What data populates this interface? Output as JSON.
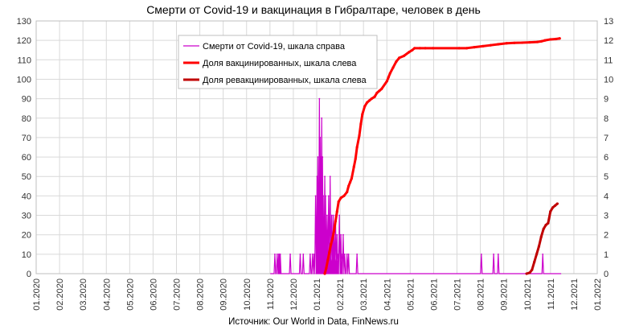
{
  "chart_data": {
    "type": "line",
    "title": "Смерти от Covid-19 и вакцинация в Гибралтаре, человек в день",
    "source": "Источник: Our World in Data, FinNews.ru",
    "x_ticks": [
      "01.2020",
      "02.2020",
      "03.2020",
      "04.2020",
      "05.2020",
      "06.2020",
      "07.2020",
      "08.2020",
      "09.2020",
      "10.2020",
      "11.2020",
      "12.2020",
      "01.2021",
      "02.2021",
      "03.2021",
      "04.2021",
      "05.2021",
      "06.2021",
      "07.2021",
      "08.2021",
      "09.2021",
      "10.2021",
      "11.2021",
      "12.2021",
      "01.2022"
    ],
    "y_left": {
      "min": 0,
      "max": 130,
      "step": 10
    },
    "y_right": {
      "min": 0,
      "max": 13,
      "step": 1
    },
    "grid": true,
    "legend": {
      "position": "top-center",
      "items": [
        {
          "label": "Смерти от Covid-19, шкала справа",
          "color": "#cc00cc",
          "width": 1.2
        },
        {
          "label": "Доля вакцинированных, шкала слева",
          "color": "#ff0000",
          "width": 3
        },
        {
          "label": "Доля ревакцинированных, шкала слева",
          "color": "#c00000",
          "width": 3
        }
      ]
    },
    "series": [
      {
        "name": "Смерти от Covid-19, шкала справа",
        "axis": "right",
        "color": "#cc00cc",
        "spikes": [
          [
            "2020-11-07",
            1
          ],
          [
            "2020-11-10",
            1
          ],
          [
            "2020-11-12",
            1
          ],
          [
            "2020-11-13",
            1
          ],
          [
            "2020-11-14",
            1
          ],
          [
            "2020-11-27",
            1
          ],
          [
            "2020-12-10",
            1
          ],
          [
            "2020-12-14",
            1
          ],
          [
            "2020-12-23",
            1
          ],
          [
            "2020-12-26",
            1
          ],
          [
            "2020-12-28",
            1
          ],
          [
            "2020-12-30",
            4
          ],
          [
            "2021-01-01",
            5
          ],
          [
            "2021-01-02",
            6
          ],
          [
            "2021-01-03",
            4
          ],
          [
            "2021-01-04",
            9
          ],
          [
            "2021-01-05",
            7
          ],
          [
            "2021-01-06",
            6
          ],
          [
            "2021-01-07",
            8
          ],
          [
            "2021-01-08",
            6
          ],
          [
            "2021-01-09",
            4
          ],
          [
            "2021-01-10",
            1
          ],
          [
            "2021-01-11",
            5
          ],
          [
            "2021-01-12",
            4
          ],
          [
            "2021-01-13",
            2
          ],
          [
            "2021-01-14",
            3
          ],
          [
            "2021-01-15",
            1
          ],
          [
            "2021-01-16",
            4
          ],
          [
            "2021-01-17",
            2
          ],
          [
            "2021-01-18",
            5
          ],
          [
            "2021-01-19",
            1
          ],
          [
            "2021-01-20",
            3
          ],
          [
            "2021-01-21",
            1
          ],
          [
            "2021-01-22",
            3
          ],
          [
            "2021-01-23",
            2
          ],
          [
            "2021-01-24",
            1
          ],
          [
            "2021-01-25",
            3
          ],
          [
            "2021-01-26",
            1
          ],
          [
            "2021-01-27",
            2
          ],
          [
            "2021-01-28",
            1
          ],
          [
            "2021-01-30",
            3
          ],
          [
            "2021-02-01",
            2
          ],
          [
            "2021-02-02",
            1
          ],
          [
            "2021-02-04",
            2
          ],
          [
            "2021-02-06",
            1
          ],
          [
            "2021-02-09",
            1
          ],
          [
            "2021-02-11",
            1
          ],
          [
            "2021-02-22",
            1
          ],
          [
            "2021-08-03",
            1
          ],
          [
            "2021-08-19",
            1
          ],
          [
            "2021-08-25",
            1
          ],
          [
            "2021-10-22",
            1
          ]
        ]
      },
      {
        "name": "Доля вакцинированных, шкала слева",
        "axis": "left",
        "color": "#ff0000",
        "points": [
          [
            "2021-01-11",
            0
          ],
          [
            "2021-01-13",
            3
          ],
          [
            "2021-01-15",
            7
          ],
          [
            "2021-01-17",
            11
          ],
          [
            "2021-01-19",
            15
          ],
          [
            "2021-01-21",
            18
          ],
          [
            "2021-01-23",
            22
          ],
          [
            "2021-01-25",
            27
          ],
          [
            "2021-01-27",
            32
          ],
          [
            "2021-01-29",
            37
          ],
          [
            "2021-02-01",
            39
          ],
          [
            "2021-02-05",
            40
          ],
          [
            "2021-02-09",
            42
          ],
          [
            "2021-02-11",
            45
          ],
          [
            "2021-02-13",
            47
          ],
          [
            "2021-02-15",
            49
          ],
          [
            "2021-02-18",
            55
          ],
          [
            "2021-02-20",
            59
          ],
          [
            "2021-02-22",
            65
          ],
          [
            "2021-02-25",
            71
          ],
          [
            "2021-02-27",
            77
          ],
          [
            "2021-03-01",
            82
          ],
          [
            "2021-03-04",
            86
          ],
          [
            "2021-03-07",
            88
          ],
          [
            "2021-03-10",
            89
          ],
          [
            "2021-03-13",
            90
          ],
          [
            "2021-03-17",
            91
          ],
          [
            "2021-03-20",
            93
          ],
          [
            "2021-03-23",
            94
          ],
          [
            "2021-03-26",
            95
          ],
          [
            "2021-04-02",
            99
          ],
          [
            "2021-04-04",
            101
          ],
          [
            "2021-04-06",
            103
          ],
          [
            "2021-04-10",
            106
          ],
          [
            "2021-04-14",
            109
          ],
          [
            "2021-04-18",
            111
          ],
          [
            "2021-04-24",
            112
          ],
          [
            "2021-05-01",
            114
          ],
          [
            "2021-05-05",
            115
          ],
          [
            "2021-05-08",
            116
          ],
          [
            "2021-05-15",
            116
          ],
          [
            "2021-05-22",
            116
          ],
          [
            "2021-06-01",
            116
          ],
          [
            "2021-07-05",
            116
          ],
          [
            "2021-07-15",
            116
          ],
          [
            "2021-07-25",
            116.5
          ],
          [
            "2021-08-05",
            117
          ],
          [
            "2021-08-15",
            117.5
          ],
          [
            "2021-08-25",
            118
          ],
          [
            "2021-09-05",
            118.5
          ],
          [
            "2021-09-15",
            118.7
          ],
          [
            "2021-09-25",
            118.8
          ],
          [
            "2021-10-05",
            119
          ],
          [
            "2021-10-15",
            119.2
          ],
          [
            "2021-10-20",
            119.5
          ],
          [
            "2021-10-25",
            120
          ],
          [
            "2021-11-01",
            120.5
          ],
          [
            "2021-11-08",
            120.7
          ],
          [
            "2021-11-13",
            121
          ]
        ]
      },
      {
        "name": "Доля ревакцинированных, шкала слева",
        "axis": "left",
        "color": "#c00000",
        "points": [
          [
            "2021-10-01",
            0
          ],
          [
            "2021-10-05",
            0.5
          ],
          [
            "2021-10-08",
            2
          ],
          [
            "2021-10-11",
            6
          ],
          [
            "2021-10-14",
            10
          ],
          [
            "2021-10-17",
            14
          ],
          [
            "2021-10-20",
            19
          ],
          [
            "2021-10-23",
            23
          ],
          [
            "2021-10-26",
            25
          ],
          [
            "2021-10-29",
            26
          ],
          [
            "2021-11-01",
            32
          ],
          [
            "2021-11-04",
            34
          ],
          [
            "2021-11-07",
            35
          ],
          [
            "2021-11-10",
            36
          ]
        ]
      }
    ]
  }
}
